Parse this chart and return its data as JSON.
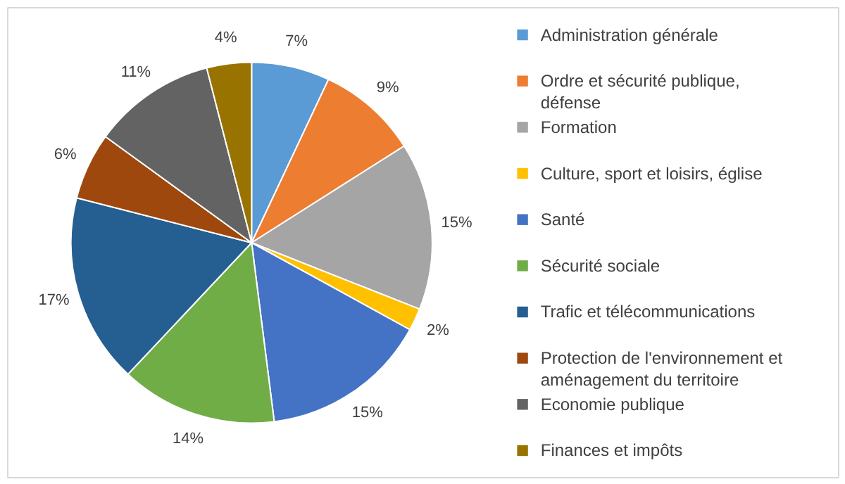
{
  "chart_data": {
    "type": "pie",
    "categories": [
      "Administration générale",
      "Ordre et sécurité publique, défense",
      "Formation",
      "Culture, sport et loisirs, église",
      "Santé",
      "Sécurité sociale",
      "Trafic et télécommunications",
      "Protection de l'environnement et aménagement du territoire",
      "Economie publique",
      "Finances et impôts"
    ],
    "values": [
      7,
      9,
      15,
      2,
      15,
      14,
      17,
      6,
      11,
      4
    ],
    "colors": [
      "#5b9bd5",
      "#ed7d31",
      "#a5a5a5",
      "#ffc000",
      "#4472c4",
      "#70ad47",
      "#255e91",
      "#9e480e",
      "#636363",
      "#997300"
    ],
    "data_labels": true,
    "value_labels": [
      "7%",
      "9%",
      "15%",
      "2%",
      "15%",
      "14%",
      "17%",
      "6%",
      "11%",
      "4%"
    ],
    "legend": "right"
  }
}
